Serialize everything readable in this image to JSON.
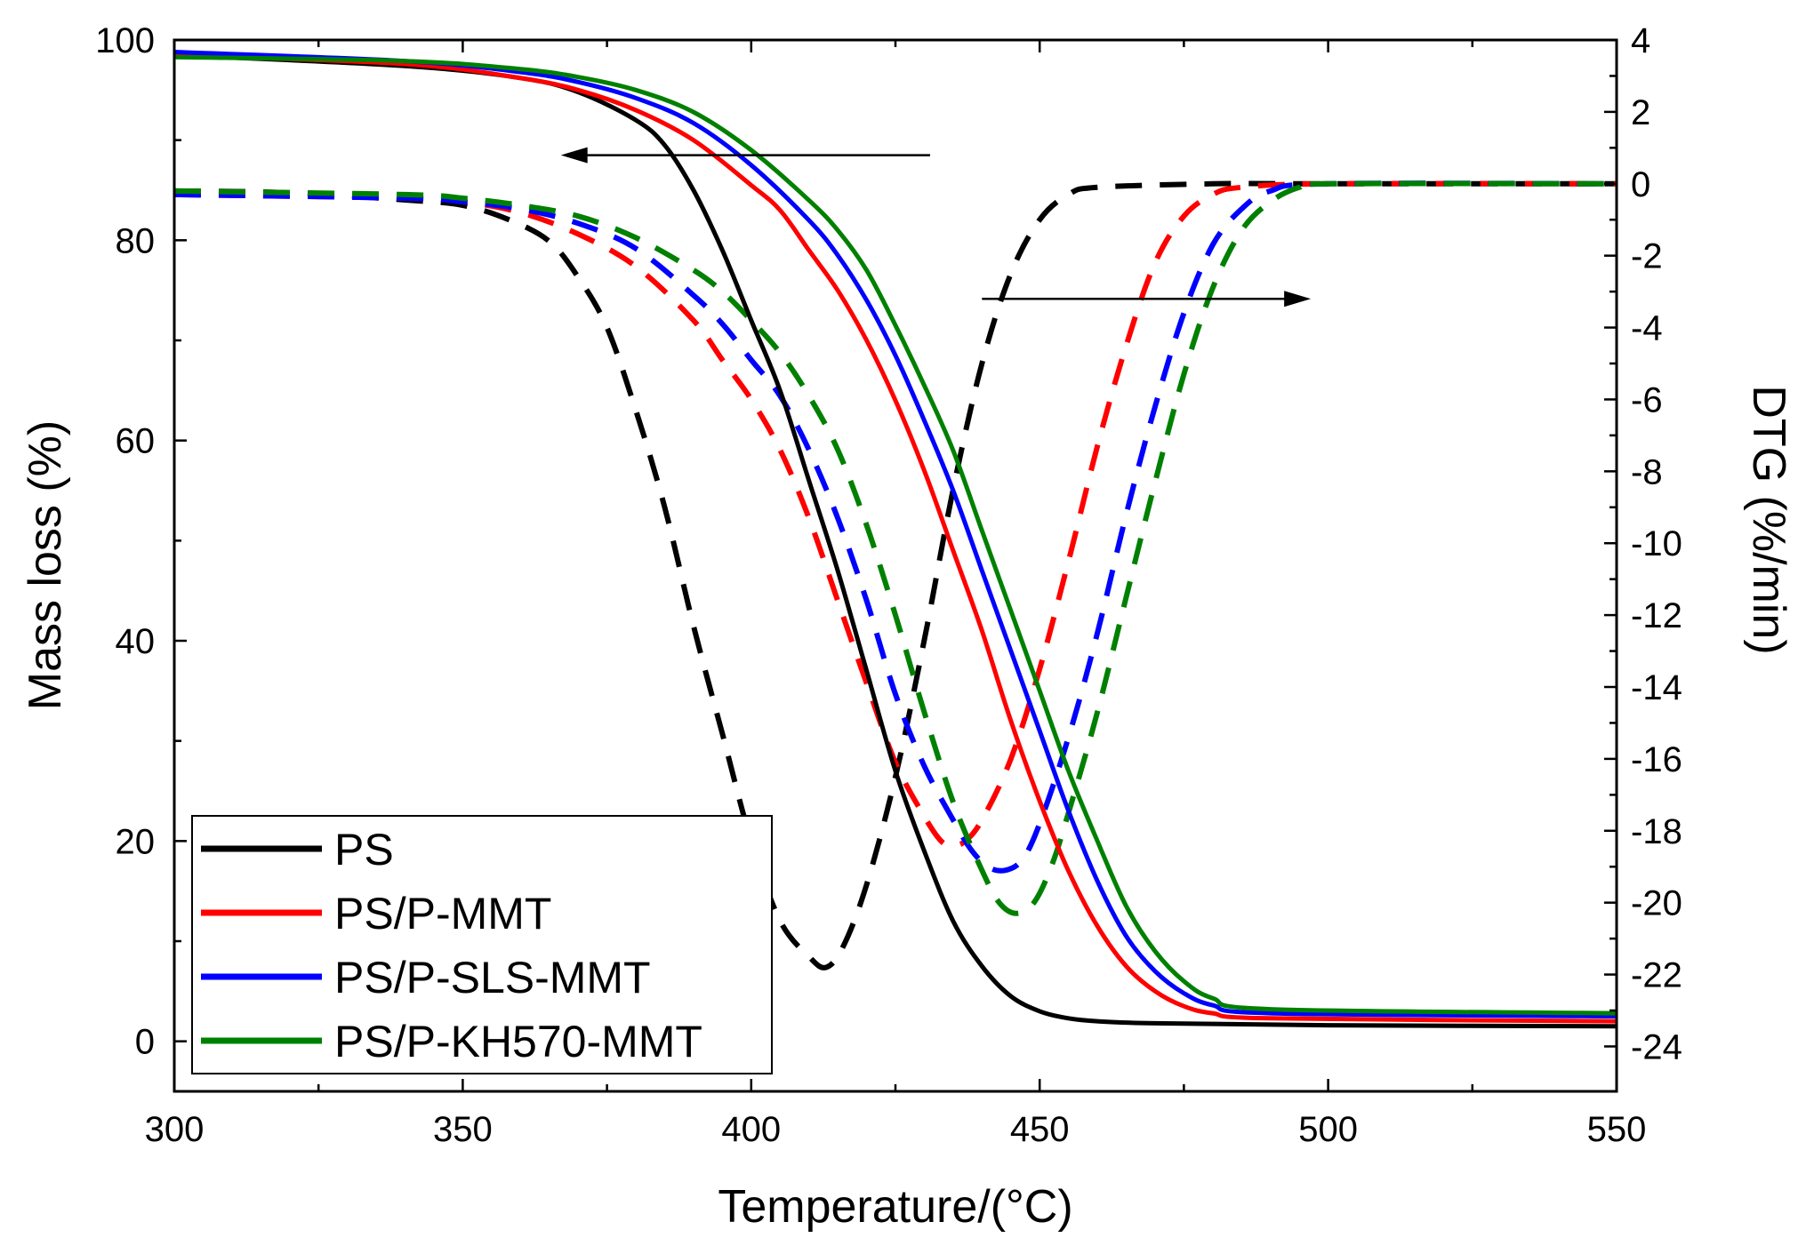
{
  "chart_data": {
    "type": "line",
    "xlabel": "Temperature/(°C)",
    "ylabel": "Mass loss (%)",
    "y2label": "DTG (%/min)",
    "xlim": [
      300,
      550
    ],
    "ylim": [
      -5,
      100
    ],
    "y2lim": [
      -25.25,
      4
    ],
    "xticks": [
      "300",
      "350",
      "400",
      "450",
      "500",
      "550"
    ],
    "yticks": [
      "0",
      "20",
      "40",
      "60",
      "80",
      "100"
    ],
    "y2ticks": [
      "4",
      "2",
      "0",
      "-2",
      "-4",
      "-6",
      "-8",
      "-10",
      "-12",
      "-14",
      "-16",
      "-18",
      "-20",
      "-22",
      "-24"
    ],
    "legend_position": "bottom-left",
    "series": [
      {
        "name": "PS",
        "color": "#000000",
        "tga": [
          [
            300,
            98.5
          ],
          [
            340,
            97.4
          ],
          [
            360,
            96.2
          ],
          [
            370,
            94.8
          ],
          [
            380,
            92
          ],
          [
            385,
            89.5
          ],
          [
            390,
            85
          ],
          [
            395,
            79
          ],
          [
            400,
            72
          ],
          [
            405,
            65
          ],
          [
            410,
            56
          ],
          [
            415,
            47
          ],
          [
            420,
            37
          ],
          [
            425,
            27
          ],
          [
            430,
            19
          ],
          [
            435,
            12
          ],
          [
            440,
            7.5
          ],
          [
            445,
            4.5
          ],
          [
            450,
            3
          ],
          [
            455,
            2.3
          ],
          [
            460,
            2
          ],
          [
            470,
            1.8
          ],
          [
            500,
            1.6
          ],
          [
            550,
            1.5
          ]
        ],
        "dtg": [
          [
            300,
            -0.2
          ],
          [
            320,
            -0.25
          ],
          [
            340,
            -0.45
          ],
          [
            350,
            -0.6
          ],
          [
            358,
            -1.0
          ],
          [
            365,
            -1.6
          ],
          [
            370,
            -2.6
          ],
          [
            375,
            -4.0
          ],
          [
            380,
            -6.3
          ],
          [
            385,
            -9
          ],
          [
            390,
            -12.3
          ],
          [
            395,
            -15.3
          ],
          [
            400,
            -18.3
          ],
          [
            405,
            -20.5
          ],
          [
            410,
            -21.5
          ],
          [
            413,
            -21.8
          ],
          [
            416,
            -21.2
          ],
          [
            420,
            -19.5
          ],
          [
            425,
            -16.5
          ],
          [
            430,
            -12.7
          ],
          [
            435,
            -8.5
          ],
          [
            440,
            -5.0
          ],
          [
            445,
            -2.5
          ],
          [
            450,
            -1.0
          ],
          [
            455,
            -0.3
          ],
          [
            460,
            -0.1
          ],
          [
            480,
            0
          ],
          [
            500,
            0
          ],
          [
            550,
            0
          ]
        ]
      },
      {
        "name": "PS/P-MMT",
        "color": "#ff0000",
        "tga": [
          [
            300,
            98.5
          ],
          [
            340,
            97.6
          ],
          [
            360,
            96.2
          ],
          [
            370,
            95
          ],
          [
            380,
            93
          ],
          [
            390,
            90
          ],
          [
            400,
            85.5
          ],
          [
            405,
            83
          ],
          [
            410,
            79
          ],
          [
            415,
            75
          ],
          [
            420,
            70
          ],
          [
            425,
            64
          ],
          [
            430,
            57
          ],
          [
            435,
            49
          ],
          [
            440,
            41
          ],
          [
            445,
            32
          ],
          [
            450,
            24
          ],
          [
            455,
            17
          ],
          [
            460,
            11.5
          ],
          [
            465,
            7.5
          ],
          [
            470,
            5
          ],
          [
            475,
            3.5
          ],
          [
            480,
            2.8
          ],
          [
            490,
            2.3
          ],
          [
            550,
            2
          ]
        ],
        "dtg": [
          [
            300,
            -0.3
          ],
          [
            340,
            -0.4
          ],
          [
            350,
            -0.5
          ],
          [
            360,
            -0.8
          ],
          [
            370,
            -1.4
          ],
          [
            380,
            -2.3
          ],
          [
            390,
            -3.8
          ],
          [
            395,
            -4.9
          ],
          [
            400,
            -6.0
          ],
          [
            405,
            -7.4
          ],
          [
            410,
            -9.3
          ],
          [
            415,
            -11.6
          ],
          [
            420,
            -13.9
          ],
          [
            425,
            -16.1
          ],
          [
            430,
            -17.6
          ],
          [
            433,
            -18.3
          ],
          [
            435,
            -18.4
          ],
          [
            437,
            -18.3
          ],
          [
            440,
            -17.7
          ],
          [
            445,
            -16.0
          ],
          [
            450,
            -13.5
          ],
          [
            455,
            -10.5
          ],
          [
            460,
            -7.3
          ],
          [
            465,
            -4.5
          ],
          [
            470,
            -2.2
          ],
          [
            475,
            -0.9
          ],
          [
            480,
            -0.3
          ],
          [
            485,
            -0.1
          ],
          [
            500,
            0
          ],
          [
            550,
            0
          ]
        ]
      },
      {
        "name": "PS/P-SLS-MMT",
        "color": "#0000ff",
        "tga": [
          [
            300,
            98.8
          ],
          [
            340,
            97.9
          ],
          [
            360,
            96.8
          ],
          [
            370,
            95.8
          ],
          [
            380,
            94.2
          ],
          [
            390,
            91.7
          ],
          [
            400,
            87.5
          ],
          [
            410,
            82
          ],
          [
            415,
            78.5
          ],
          [
            420,
            74
          ],
          [
            425,
            68.5
          ],
          [
            430,
            62
          ],
          [
            435,
            55
          ],
          [
            440,
            47
          ],
          [
            445,
            39
          ],
          [
            450,
            31
          ],
          [
            455,
            23
          ],
          [
            460,
            16
          ],
          [
            465,
            10.5
          ],
          [
            470,
            7
          ],
          [
            475,
            4.8
          ],
          [
            480,
            3.6
          ],
          [
            490,
            2.8
          ],
          [
            550,
            2.5
          ]
        ],
        "dtg": [
          [
            300,
            -0.3
          ],
          [
            340,
            -0.4
          ],
          [
            350,
            -0.5
          ],
          [
            360,
            -0.7
          ],
          [
            370,
            -1.1
          ],
          [
            380,
            -1.8
          ],
          [
            390,
            -3.1
          ],
          [
            395,
            -3.9
          ],
          [
            400,
            -4.9
          ],
          [
            405,
            -5.9
          ],
          [
            410,
            -7.4
          ],
          [
            415,
            -9.3
          ],
          [
            420,
            -11.6
          ],
          [
            425,
            -14.2
          ],
          [
            430,
            -16.2
          ],
          [
            435,
            -17.7
          ],
          [
            438,
            -18.5
          ],
          [
            441,
            -19.0
          ],
          [
            444,
            -19.1
          ],
          [
            447,
            -18.8
          ],
          [
            450,
            -17.8
          ],
          [
            455,
            -15.4
          ],
          [
            460,
            -12.5
          ],
          [
            465,
            -9.2
          ],
          [
            470,
            -6.2
          ],
          [
            475,
            -3.6
          ],
          [
            480,
            -1.7
          ],
          [
            485,
            -0.7
          ],
          [
            490,
            -0.2
          ],
          [
            500,
            0
          ],
          [
            550,
            0
          ]
        ]
      },
      {
        "name": "PS/P-KH570-MMT",
        "color": "#008000",
        "tga": [
          [
            300,
            98.3
          ],
          [
            340,
            97.9
          ],
          [
            360,
            97.1
          ],
          [
            370,
            96.3
          ],
          [
            380,
            95
          ],
          [
            390,
            92.8
          ],
          [
            400,
            89
          ],
          [
            410,
            84
          ],
          [
            415,
            81
          ],
          [
            420,
            77
          ],
          [
            425,
            71.5
          ],
          [
            430,
            65.5
          ],
          [
            435,
            59
          ],
          [
            440,
            51
          ],
          [
            445,
            43
          ],
          [
            450,
            35
          ],
          [
            455,
            27
          ],
          [
            460,
            20
          ],
          [
            465,
            13.5
          ],
          [
            470,
            9
          ],
          [
            475,
            6
          ],
          [
            480,
            4.3
          ],
          [
            490,
            3.2
          ],
          [
            550,
            2.8
          ]
        ],
        "dtg": [
          [
            300,
            -0.2
          ],
          [
            340,
            -0.3
          ],
          [
            350,
            -0.4
          ],
          [
            360,
            -0.6
          ],
          [
            370,
            -0.9
          ],
          [
            380,
            -1.5
          ],
          [
            390,
            -2.4
          ],
          [
            395,
            -3.0
          ],
          [
            400,
            -3.8
          ],
          [
            405,
            -4.7
          ],
          [
            410,
            -5.9
          ],
          [
            415,
            -7.4
          ],
          [
            420,
            -9.5
          ],
          [
            425,
            -12.0
          ],
          [
            430,
            -14.7
          ],
          [
            435,
            -17.2
          ],
          [
            440,
            -19.1
          ],
          [
            443,
            -20.0
          ],
          [
            446,
            -20.3
          ],
          [
            449,
            -20.0
          ],
          [
            452,
            -19.0
          ],
          [
            455,
            -17.5
          ],
          [
            460,
            -14.7
          ],
          [
            465,
            -11.5
          ],
          [
            470,
            -8.3
          ],
          [
            475,
            -5.3
          ],
          [
            480,
            -2.9
          ],
          [
            485,
            -1.3
          ],
          [
            490,
            -0.5
          ],
          [
            495,
            -0.1
          ],
          [
            500,
            0
          ],
          [
            550,
            0
          ]
        ]
      }
    ],
    "annotations": [
      {
        "type": "arrow",
        "label": "TGA axis pointer",
        "direction": "left",
        "axis": "left",
        "x_from": 431,
        "x_to": 367,
        "y": 88.5
      },
      {
        "type": "arrow",
        "label": "DTG axis pointer",
        "direction": "right",
        "axis": "right",
        "x_from": 440,
        "x_to": 497,
        "y": -3.2
      }
    ]
  }
}
